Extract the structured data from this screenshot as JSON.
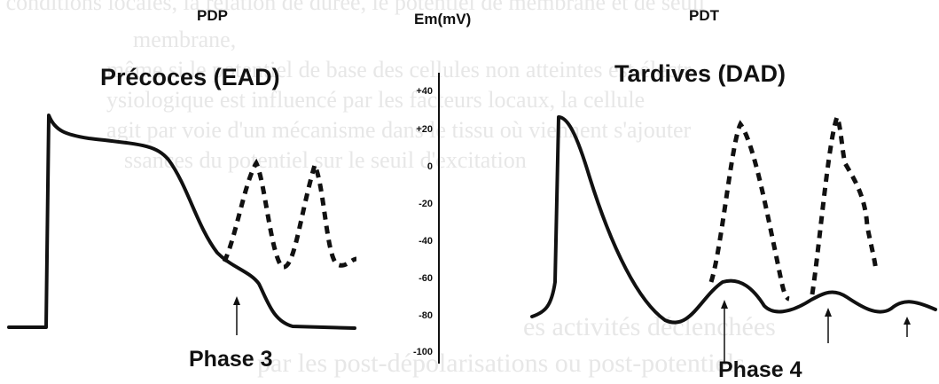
{
  "labels": {
    "pdp": "PDP",
    "pdt": "PDT",
    "em_axis": "Em(mV)",
    "ead_title": "Précoces (EAD)",
    "dad_title": "Tardives (DAD)",
    "phase3": "Phase 3",
    "phase4": "Phase 4"
  },
  "axis": {
    "ticks": [
      "+40",
      "+20",
      "0",
      "-20",
      "-40",
      "-60",
      "-80",
      "-100"
    ]
  },
  "background_text": [
    "s conditions locales, la relation de durée, le potentiel de membrane et de seuil",
    "membrane,",
    "même si le potentiel de base des cellules non atteintes est électr-",
    "ysiologique est influencé par les facteurs locaux, la cellule",
    "agit par voie d'un mécanisme dans le tissu où viennent s'ajouter",
    "ssances du potentiel sur le seuil d'excitation",
    "es activités déclenchées",
    "par les post-dépolarisations ou post-potentiels"
  ]
}
